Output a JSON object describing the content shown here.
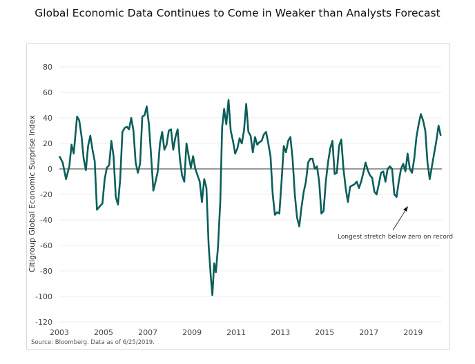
{
  "chart_data": {
    "type": "line",
    "title": "Global Economic Data Continues to Come in Weaker than Analysts Forecast",
    "ylabel": "Citigroup Global Economic Surprise Index",
    "xlabel": "",
    "source": "Source: Bloomberg. Data as of 6/25/2019.",
    "annotation": "Longest stretch below zero on record",
    "ylim": [
      -120,
      80
    ],
    "xlim": [
      2003.0,
      2020.3
    ],
    "y_ticks": [
      80,
      60,
      40,
      20,
      0,
      -20,
      -40,
      -60,
      -80,
      -100,
      -120
    ],
    "x_ticks": [
      2003,
      2005,
      2007,
      2009,
      2011,
      2013,
      2015,
      2017,
      2019
    ],
    "color": "#0b5e5a",
    "series": [
      {
        "values": [
          [
            2003.0,
            10
          ],
          [
            2003.15,
            5
          ],
          [
            2003.3,
            -8
          ],
          [
            2003.45,
            2
          ],
          [
            2003.55,
            19
          ],
          [
            2003.65,
            12
          ],
          [
            2003.8,
            41
          ],
          [
            2003.9,
            38
          ],
          [
            2004.0,
            26
          ],
          [
            2004.1,
            8
          ],
          [
            2004.2,
            -1
          ],
          [
            2004.3,
            18
          ],
          [
            2004.4,
            26
          ],
          [
            2004.5,
            15
          ],
          [
            2004.6,
            6
          ],
          [
            2004.7,
            -32
          ],
          [
            2004.85,
            -29
          ],
          [
            2004.95,
            -27
          ],
          [
            2005.05,
            -8
          ],
          [
            2005.15,
            1
          ],
          [
            2005.25,
            3
          ],
          [
            2005.35,
            22
          ],
          [
            2005.45,
            10
          ],
          [
            2005.55,
            -22
          ],
          [
            2005.65,
            -28
          ],
          [
            2005.75,
            -8
          ],
          [
            2005.85,
            29
          ],
          [
            2005.95,
            32
          ],
          [
            2006.05,
            33
          ],
          [
            2006.15,
            31
          ],
          [
            2006.25,
            40
          ],
          [
            2006.35,
            30
          ],
          [
            2006.45,
            5
          ],
          [
            2006.55,
            -3
          ],
          [
            2006.65,
            4
          ],
          [
            2006.75,
            41
          ],
          [
            2006.85,
            42
          ],
          [
            2006.95,
            49
          ],
          [
            2007.05,
            35
          ],
          [
            2007.15,
            10
          ],
          [
            2007.25,
            -17
          ],
          [
            2007.35,
            -10
          ],
          [
            2007.45,
            -2
          ],
          [
            2007.55,
            20
          ],
          [
            2007.65,
            29
          ],
          [
            2007.75,
            15
          ],
          [
            2007.85,
            19
          ],
          [
            2007.95,
            30
          ],
          [
            2008.05,
            31
          ],
          [
            2008.15,
            15
          ],
          [
            2008.25,
            25
          ],
          [
            2008.35,
            31
          ],
          [
            2008.45,
            8
          ],
          [
            2008.55,
            -5
          ],
          [
            2008.65,
            -10
          ],
          [
            2008.75,
            20
          ],
          [
            2008.85,
            10
          ],
          [
            2008.95,
            1
          ],
          [
            2009.05,
            10
          ],
          [
            2009.15,
            0
          ],
          [
            2009.25,
            -5
          ],
          [
            2009.35,
            -10
          ],
          [
            2009.45,
            -26
          ],
          [
            2009.55,
            -8
          ],
          [
            2009.65,
            -15
          ],
          [
            2009.75,
            -60
          ],
          [
            2009.85,
            -85
          ],
          [
            2009.92,
            -99
          ],
          [
            2010.0,
            -74
          ],
          [
            2010.08,
            -81
          ],
          [
            2010.18,
            -60
          ],
          [
            2010.28,
            -25
          ],
          [
            2010.36,
            32
          ],
          [
            2010.45,
            47
          ],
          [
            2010.55,
            35
          ],
          [
            2010.65,
            54
          ],
          [
            2010.75,
            30
          ],
          [
            2010.85,
            22
          ],
          [
            2010.95,
            12
          ],
          [
            2011.05,
            16
          ],
          [
            2011.15,
            24
          ],
          [
            2011.25,
            20
          ],
          [
            2011.35,
            30
          ],
          [
            2011.45,
            51
          ],
          [
            2011.55,
            29
          ],
          [
            2011.65,
            26
          ],
          [
            2011.75,
            13
          ],
          [
            2011.85,
            25
          ],
          [
            2011.95,
            19
          ],
          [
            2012.05,
            21
          ],
          [
            2012.15,
            22
          ],
          [
            2012.25,
            27
          ],
          [
            2012.35,
            29
          ],
          [
            2012.45,
            20
          ],
          [
            2012.55,
            10
          ],
          [
            2012.65,
            -20
          ],
          [
            2012.75,
            -36
          ],
          [
            2012.85,
            -34
          ],
          [
            2012.95,
            -35
          ],
          [
            2013.05,
            -10
          ],
          [
            2013.15,
            18
          ],
          [
            2013.25,
            13
          ],
          [
            2013.35,
            22
          ],
          [
            2013.45,
            25
          ],
          [
            2013.55,
            8
          ],
          [
            2013.65,
            -20
          ],
          [
            2013.75,
            -38
          ],
          [
            2013.85,
            -45
          ],
          [
            2013.95,
            -30
          ],
          [
            2014.05,
            -18
          ],
          [
            2014.15,
            -10
          ],
          [
            2014.25,
            5
          ],
          [
            2014.35,
            8
          ],
          [
            2014.45,
            8
          ],
          [
            2014.55,
            0
          ],
          [
            2014.65,
            2
          ],
          [
            2014.75,
            -10
          ],
          [
            2014.85,
            -35
          ],
          [
            2014.95,
            -33
          ],
          [
            2015.05,
            -10
          ],
          [
            2015.15,
            5
          ],
          [
            2015.25,
            16
          ],
          [
            2015.35,
            22
          ],
          [
            2015.45,
            -4
          ],
          [
            2015.55,
            -3
          ],
          [
            2015.65,
            18
          ],
          [
            2015.75,
            23
          ],
          [
            2015.85,
            0
          ],
          [
            2015.95,
            -15
          ],
          [
            2016.05,
            -26
          ],
          [
            2016.15,
            -14
          ],
          [
            2016.25,
            -13
          ],
          [
            2016.35,
            -12
          ],
          [
            2016.45,
            -10
          ],
          [
            2016.55,
            -15
          ],
          [
            2016.65,
            -10
          ],
          [
            2016.75,
            -3
          ],
          [
            2016.85,
            5
          ],
          [
            2016.95,
            -1
          ],
          [
            2017.05,
            -5
          ],
          [
            2017.15,
            -7
          ],
          [
            2017.25,
            -18
          ],
          [
            2017.35,
            -20
          ],
          [
            2017.45,
            -12
          ],
          [
            2017.55,
            -3
          ],
          [
            2017.65,
            -2
          ],
          [
            2017.75,
            -10
          ],
          [
            2017.85,
            0
          ],
          [
            2017.95,
            2
          ],
          [
            2018.05,
            0
          ],
          [
            2018.15,
            -20
          ],
          [
            2018.25,
            -22
          ],
          [
            2018.35,
            -10
          ],
          [
            2018.45,
            0
          ],
          [
            2018.55,
            4
          ],
          [
            2018.65,
            -2
          ],
          [
            2018.75,
            12
          ],
          [
            2018.85,
            0
          ],
          [
            2018.95,
            -3
          ],
          [
            2019.05,
            8
          ],
          [
            2019.15,
            25
          ],
          [
            2019.25,
            35
          ],
          [
            2019.35,
            43
          ],
          [
            2019.45,
            38
          ],
          [
            2019.55,
            30
          ],
          [
            2019.65,
            5
          ],
          [
            2019.75,
            -8
          ],
          [
            2019.85,
            2
          ],
          [
            2019.95,
            12
          ],
          [
            2020.05,
            22
          ],
          [
            2020.15,
            34
          ],
          [
            2020.25,
            26
          ]
        ]
      }
    ]
  }
}
